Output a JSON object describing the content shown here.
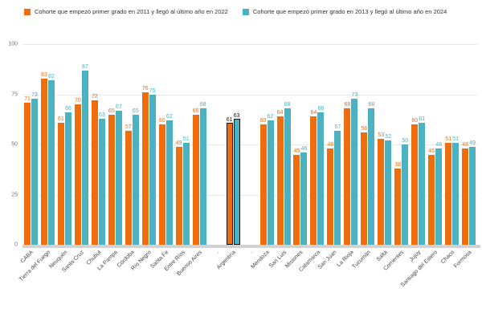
{
  "chart_data": {
    "type": "bar",
    "title": "",
    "categories": [
      "CABA",
      "Tierra del Fuego",
      "Neuquén",
      "Santa Cruz",
      "Chubut",
      "La Pampa",
      "Córdoba",
      "Río Negro",
      "Santa Fe",
      "Entre Ríos",
      "Buenos Aires",
      ".",
      "Argentina",
      ".",
      "Mendoza",
      "San Luis",
      "Misiones",
      "Catamarca",
      "San Juan",
      "La Rioja",
      "Tucumán",
      "Salta",
      "Corrientes",
      "Jujuy",
      "Santiago del Estero",
      "Chaco",
      "Formosa"
    ],
    "series": [
      {
        "name": "Cohorte que empezó primer grado en 2011 y llegó al último año en 2022",
        "color": "#ee6d0c",
        "values": [
          71,
          83,
          61,
          70,
          72,
          65,
          57,
          76,
          60,
          49,
          65,
          null,
          61,
          null,
          60,
          64,
          45,
          64,
          48,
          68,
          56,
          53,
          38,
          60,
          45,
          51,
          48
        ]
      },
      {
        "name": "Cohorte que empezó primer grado en 2013 y llegó al último año en 2024",
        "color": "#4ab2c1",
        "values": [
          73,
          82,
          66,
          87,
          63,
          67,
          65,
          75,
          62,
          51,
          68,
          null,
          63,
          null,
          62,
          68,
          46,
          66,
          57,
          73,
          68,
          52,
          50,
          61,
          48,
          51,
          49
        ]
      }
    ],
    "highlight_category": "Argentina",
    "highlight_color": "#111111",
    "ylim": [
      0,
      100
    ],
    "yticks": [
      0,
      25,
      50,
      75,
      100
    ],
    "grid": true,
    "legend_position": "top",
    "value_labels": true
  }
}
